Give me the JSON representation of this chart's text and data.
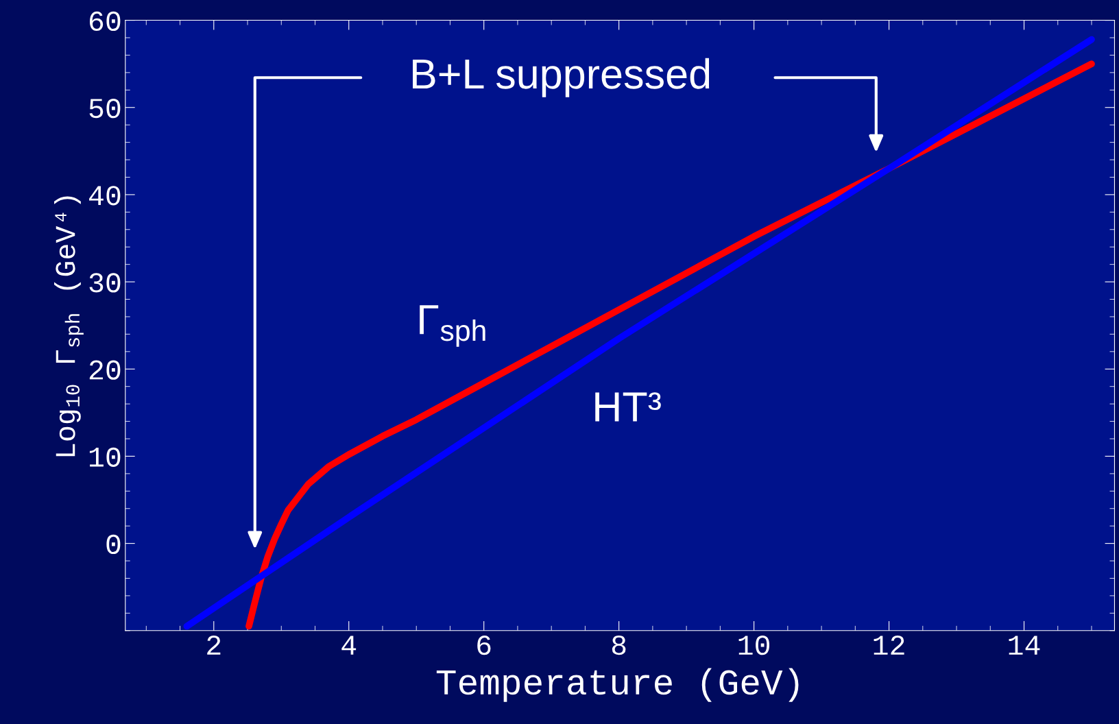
{
  "chart_data": {
    "type": "line",
    "xlabel": "Temperature (GeV)",
    "ylabel": "Log$_{10}$ Γ$_{sph}$ (GeV⁴)",
    "xlim": [
      0.69,
      15.34
    ],
    "ylim": [
      -10,
      60
    ],
    "xticks": [
      2,
      4,
      6,
      8,
      10,
      12,
      14
    ],
    "yticks": [
      0,
      10,
      20,
      30,
      40,
      50,
      60
    ],
    "grid": false,
    "legend": false,
    "series": [
      {
        "name": "Γ$_{sph}$",
        "color": "#ff0000",
        "x": [
          2.52,
          2.6,
          2.7,
          2.8,
          2.9,
          3.0,
          3.1,
          3.4,
          3.7,
          4.0,
          4.5,
          5.0,
          6.0,
          8.0,
          10.0,
          12.0,
          13.0,
          15.0
        ],
        "values": [
          -9.5,
          -7,
          -4,
          -1.5,
          0.5,
          2.2,
          3.8,
          6.8,
          8.8,
          10.2,
          12.3,
          14.2,
          18.4,
          26.8,
          35.2,
          43,
          47,
          55
        ]
      },
      {
        "name": "HT³",
        "color": "#0000ff",
        "x": [
          1.6,
          4,
          8,
          12,
          15
        ],
        "values": [
          -9.5,
          3,
          23.5,
          43,
          57.8
        ]
      }
    ],
    "annotations": [
      "B+L suppressed"
    ]
  }
}
